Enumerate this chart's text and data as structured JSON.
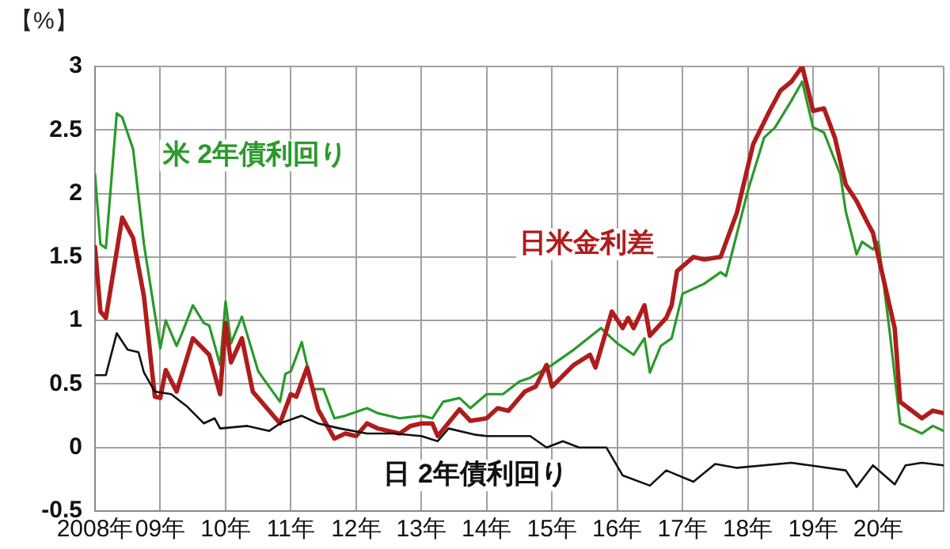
{
  "chart_data": {
    "type": "line",
    "ylabel": "【%】",
    "xlim": [
      "2008",
      "2021"
    ],
    "ylim": [
      -0.5,
      3
    ],
    "xticks": [
      {
        "value": "2008",
        "label": "2008年"
      },
      {
        "value": "2009",
        "label": "09年"
      },
      {
        "value": "2010",
        "label": "10年"
      },
      {
        "value": "2011",
        "label": "11年"
      },
      {
        "value": "2012",
        "label": "12年"
      },
      {
        "value": "2013",
        "label": "13年"
      },
      {
        "value": "2014",
        "label": "14年"
      },
      {
        "value": "2015",
        "label": "15年"
      },
      {
        "value": "2016",
        "label": "16年"
      },
      {
        "value": "2017",
        "label": "17年"
      },
      {
        "value": "2018",
        "label": "18年"
      },
      {
        "value": "2019",
        "label": "19年"
      },
      {
        "value": "2020",
        "label": "20年"
      },
      {
        "value": "2021",
        "label": null
      }
    ],
    "yticks": [
      -0.5,
      0,
      0.5,
      1,
      1.5,
      2,
      2.5,
      3
    ],
    "grid": true,
    "legend": false,
    "marker": "none",
    "line_style": "solid",
    "series": [
      {
        "name": "米 2年債利回り",
        "color": "#2a9a2a",
        "x": [
          "2008-01",
          "2008-02",
          "2008-03",
          "2008-05",
          "2008-06",
          "2008-08",
          "2008-10",
          "2009-01",
          "2009-02",
          "2009-04",
          "2009-05",
          "2009-07",
          "2009-09",
          "2009-10",
          "2009-12",
          "2010-01",
          "2010-02",
          "2010-04",
          "2010-07",
          "2010-11",
          "2010-12",
          "2011-01",
          "2011-03",
          "2011-05",
          "2011-07",
          "2011-09",
          "2011-11",
          "2012-03",
          "2012-05",
          "2012-09",
          "2013-01",
          "2013-03",
          "2013-05",
          "2013-08",
          "2013-10",
          "2014-01",
          "2014-04",
          "2014-07",
          "2014-09",
          "2015-01",
          "2015-05",
          "2015-10",
          "2016-01",
          "2016-04",
          "2016-06",
          "2016-07",
          "2016-09",
          "2016-11",
          "2017-01",
          "2017-05",
          "2017-08",
          "2017-09",
          "2018-01",
          "2018-04",
          "2018-06",
          "2018-09",
          "2018-11",
          "2019-01",
          "2019-03",
          "2019-06",
          "2019-07",
          "2019-09",
          "2019-10",
          "2019-12",
          "2020-01",
          "2020-03",
          "2020-05",
          "2020-07",
          "2020-09",
          "2020-11",
          "2021-01"
        ],
        "values": [
          2.15,
          1.6,
          1.57,
          2.63,
          2.6,
          2.35,
          1.6,
          0.78,
          1.0,
          0.8,
          0.9,
          1.12,
          0.98,
          0.96,
          0.65,
          1.15,
          0.82,
          1.03,
          0.6,
          0.36,
          0.58,
          0.6,
          0.83,
          0.46,
          0.46,
          0.23,
          0.25,
          0.31,
          0.27,
          0.23,
          0.25,
          0.23,
          0.36,
          0.39,
          0.31,
          0.42,
          0.42,
          0.52,
          0.55,
          0.65,
          0.77,
          0.94,
          0.82,
          0.73,
          0.86,
          0.59,
          0.8,
          0.86,
          1.21,
          1.29,
          1.38,
          1.35,
          2.02,
          2.44,
          2.52,
          2.73,
          2.88,
          2.52,
          2.48,
          2.15,
          1.86,
          1.52,
          1.62,
          1.56,
          1.62,
          0.94,
          0.19,
          0.15,
          0.11,
          0.17,
          0.13
        ]
      },
      {
        "name": "日米金利差",
        "color": "#b01c1c",
        "x": [
          "2008-01",
          "2008-02",
          "2008-03",
          "2008-06",
          "2008-08",
          "2008-10",
          "2008-12",
          "2009-01",
          "2009-02",
          "2009-04",
          "2009-07",
          "2009-10",
          "2009-12",
          "2010-01",
          "2010-02",
          "2010-04",
          "2010-06",
          "2010-11",
          "2011-01",
          "2011-02",
          "2011-04",
          "2011-06",
          "2011-09",
          "2011-11",
          "2012-01",
          "2012-03",
          "2012-05",
          "2012-09",
          "2012-11",
          "2013-01",
          "2013-03",
          "2013-04",
          "2013-08",
          "2013-10",
          "2014-01",
          "2014-03",
          "2014-05",
          "2014-08",
          "2014-10",
          "2014-12",
          "2015-01",
          "2015-05",
          "2015-08",
          "2015-09",
          "2015-12",
          "2016-02",
          "2016-03",
          "2016-04",
          "2016-06",
          "2016-07",
          "2016-10",
          "2016-11",
          "2016-12",
          "2017-03",
          "2017-05",
          "2017-08",
          "2017-11",
          "2018-02",
          "2018-05",
          "2018-07",
          "2018-09",
          "2018-11",
          "2019-01",
          "2019-03",
          "2019-05",
          "2019-07",
          "2019-09",
          "2019-11",
          "2019-12",
          "2020-04",
          "2020-05",
          "2020-09",
          "2020-11",
          "2021-01"
        ],
        "values": [
          1.58,
          1.07,
          1.02,
          1.81,
          1.65,
          1.19,
          0.4,
          0.39,
          0.61,
          0.44,
          0.86,
          0.73,
          0.42,
          0.98,
          0.67,
          0.86,
          0.44,
          0.19,
          0.42,
          0.4,
          0.63,
          0.3,
          0.07,
          0.11,
          0.09,
          0.19,
          0.15,
          0.11,
          0.17,
          0.19,
          0.19,
          0.09,
          0.3,
          0.21,
          0.23,
          0.31,
          0.29,
          0.44,
          0.48,
          0.65,
          0.48,
          0.65,
          0.73,
          0.63,
          1.07,
          0.94,
          1.02,
          0.94,
          1.12,
          0.88,
          1.02,
          1.12,
          1.39,
          1.5,
          1.48,
          1.5,
          1.85,
          2.39,
          2.65,
          2.81,
          2.88,
          3.0,
          2.65,
          2.67,
          2.44,
          2.07,
          1.94,
          1.77,
          1.69,
          0.94,
          0.36,
          0.23,
          0.29,
          0.27
        ]
      },
      {
        "name": "日 2年債利回り",
        "color": "#111111",
        "x": [
          "2008-01",
          "2008-03",
          "2008-05",
          "2008-07",
          "2008-09",
          "2008-10",
          "2008-12",
          "2009-03",
          "2009-06",
          "2009-09",
          "2009-11",
          "2009-12",
          "2010-05",
          "2010-09",
          "2010-11",
          "2011-03",
          "2011-06",
          "2011-10",
          "2012-03",
          "2012-08",
          "2013-01",
          "2013-04",
          "2013-06",
          "2013-11",
          "2014-01",
          "2014-09",
          "2014-12",
          "2015-03",
          "2015-06",
          "2015-11",
          "2016-02",
          "2016-07",
          "2016-10",
          "2017-03",
          "2017-07",
          "2017-11",
          "2018-09",
          "2019-07",
          "2019-09",
          "2019-12",
          "2020-04",
          "2020-06",
          "2020-09",
          "2021-01"
        ],
        "values": [
          0.57,
          0.57,
          0.9,
          0.77,
          0.75,
          0.59,
          0.44,
          0.42,
          0.32,
          0.19,
          0.23,
          0.15,
          0.17,
          0.13,
          0.19,
          0.25,
          0.19,
          0.15,
          0.11,
          0.11,
          0.09,
          0.05,
          0.15,
          0.1,
          0.09,
          0.09,
          0.0,
          0.05,
          0.0,
          0.0,
          -0.22,
          -0.3,
          -0.18,
          -0.27,
          -0.13,
          -0.16,
          -0.12,
          -0.18,
          -0.31,
          -0.14,
          -0.29,
          -0.14,
          -0.12,
          -0.14
        ]
      }
    ]
  }
}
